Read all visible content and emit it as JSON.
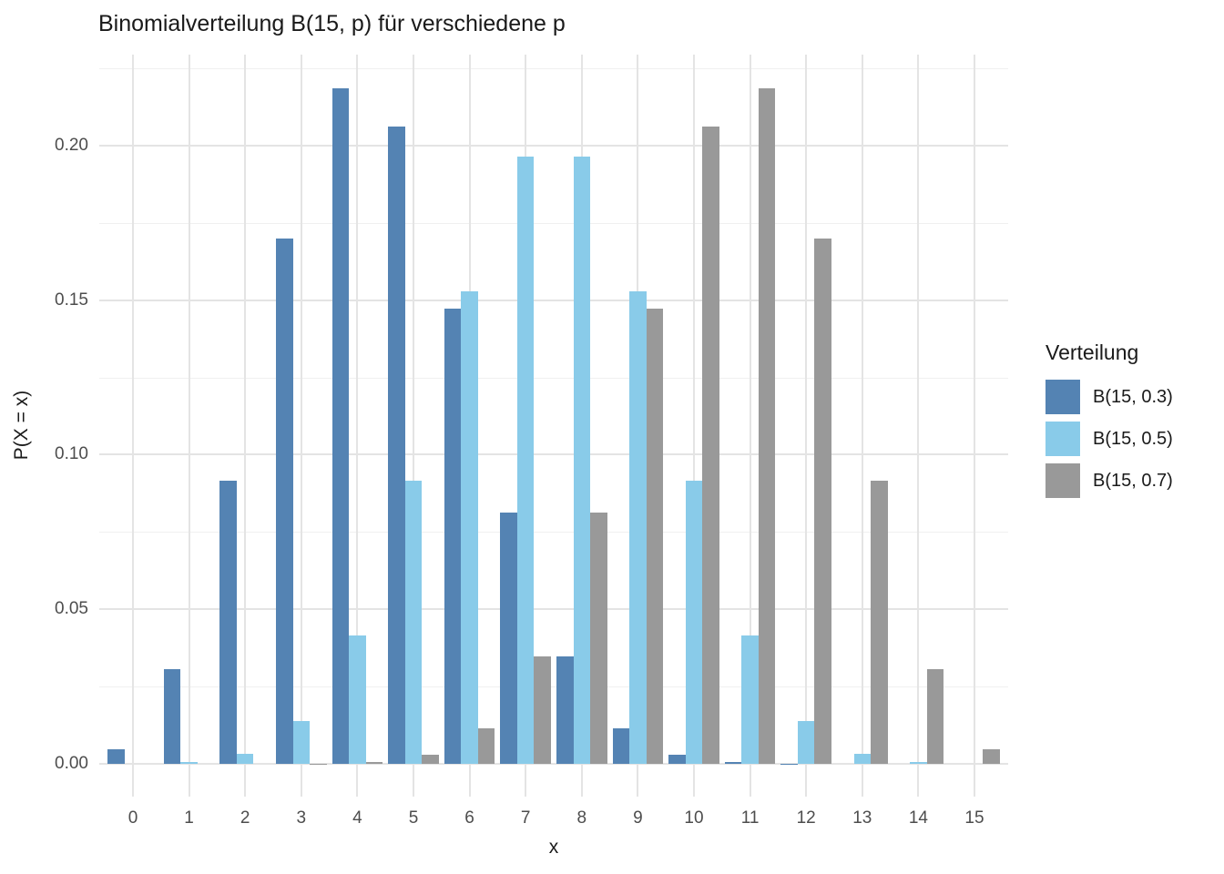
{
  "title": "Binomialverteilung B(15, p) für verschiedene p",
  "legend": {
    "title": "Verteilung"
  },
  "colors": {
    "series_blue": "#5483B3",
    "series_lightblue": "#89CBE9",
    "series_gray": "#999999",
    "grid_major": "#E4E4E4",
    "grid_minor": "#F0F0F0",
    "title_text": "#1a1a1a",
    "tick_text": "#4D4D4D",
    "background": "#ffffff"
  },
  "chart_data": {
    "type": "bar",
    "title": "Binomialverteilung B(15, p) für verschiedene p",
    "xlabel": "x",
    "ylabel": "P(X = x)",
    "categories": [
      0,
      1,
      2,
      3,
      4,
      5,
      6,
      7,
      8,
      9,
      10,
      11,
      12,
      13,
      14,
      15
    ],
    "x_tick_labels": [
      "0",
      "1",
      "2",
      "3",
      "4",
      "5",
      "6",
      "7",
      "8",
      "9",
      "10",
      "11",
      "12",
      "13",
      "14",
      "15"
    ],
    "y_ticks": [
      0.0,
      0.05,
      0.1,
      0.15,
      0.2
    ],
    "y_tick_labels": [
      "0.00",
      "0.05",
      "0.10",
      "0.15",
      "0.20"
    ],
    "y_minor_ticks": [
      0.025,
      0.075,
      0.125,
      0.175,
      0.225
    ],
    "ylim": [
      0,
      0.2295
    ],
    "grid": "horizontal major+minor, vertical major only, light gray on white",
    "legend_position": "right",
    "legend_title": "Verteilung",
    "bar_mode": "dodge",
    "series": [
      {
        "name": "B(15, 0.3)",
        "color": "#5483B3",
        "values": [
          0.00475,
          0.03052,
          0.09156,
          0.17004,
          0.21862,
          0.20613,
          0.14724,
          0.08113,
          0.03477,
          0.01159,
          0.00298,
          0.00058,
          8e-05,
          1e-05,
          0,
          0
        ]
      },
      {
        "name": "B(15, 0.5)",
        "color": "#89CBE9",
        "values": [
          3e-05,
          0.00046,
          0.0032,
          0.01389,
          0.04166,
          0.09164,
          0.15274,
          0.19638,
          0.19638,
          0.15274,
          0.09164,
          0.04166,
          0.01389,
          0.0032,
          0.00046,
          3e-05
        ]
      },
      {
        "name": "B(15, 0.7)",
        "color": "#999999",
        "values": [
          0,
          0,
          1e-05,
          8e-05,
          0.00058,
          0.00298,
          0.01159,
          0.03477,
          0.08113,
          0.14724,
          0.20613,
          0.21862,
          0.17004,
          0.09156,
          0.03052,
          0.00475
        ]
      }
    ]
  }
}
